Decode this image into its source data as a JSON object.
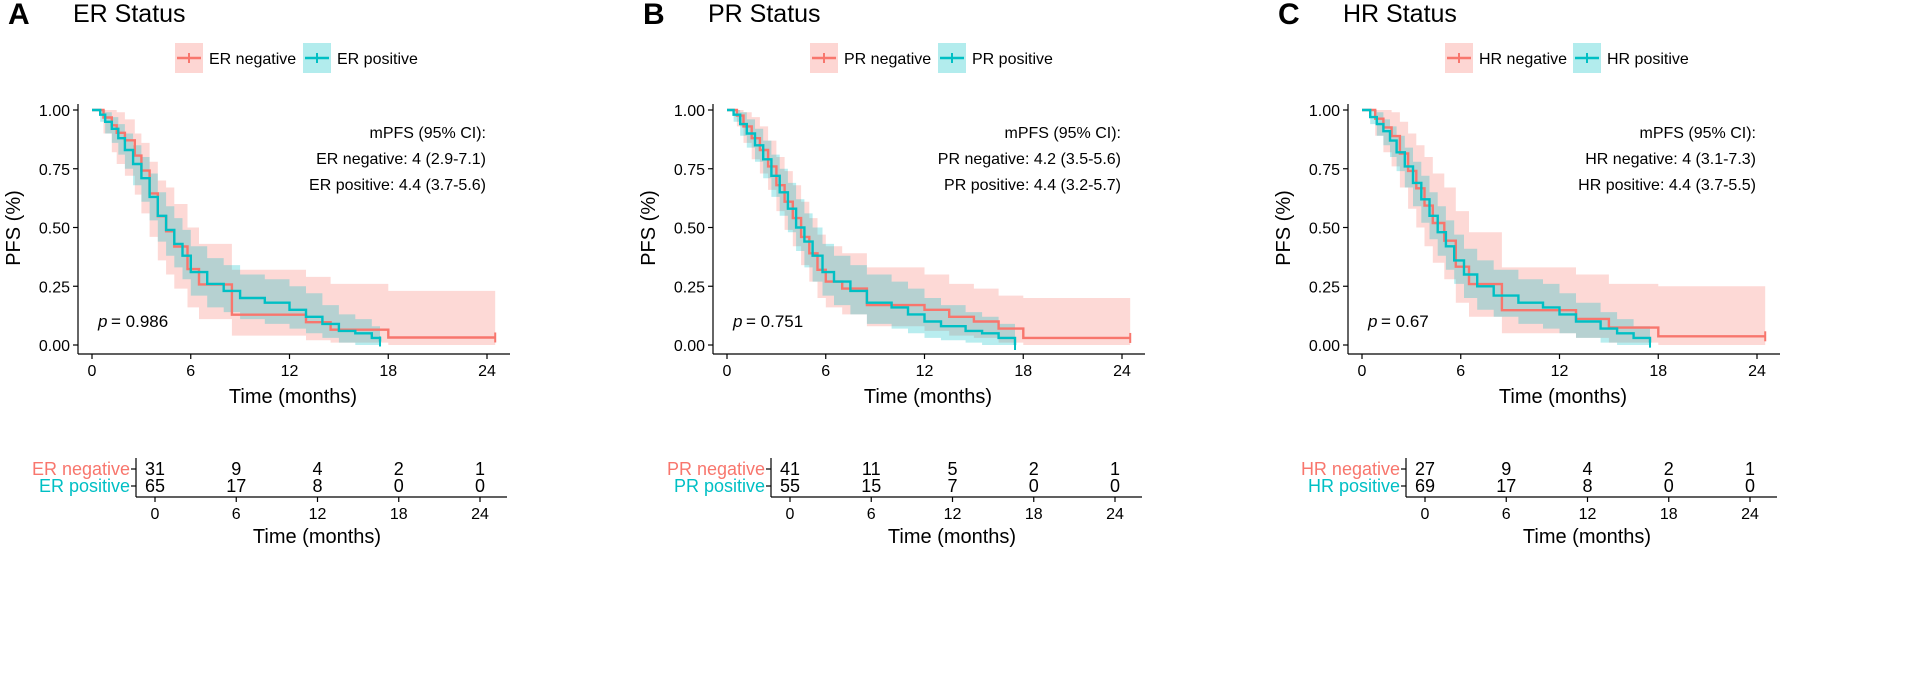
{
  "colors": {
    "negative": "#F8766D",
    "positive": "#00BFC4",
    "neg_fill": "#F8766D",
    "pos_fill": "#00BFC4"
  },
  "chart_data": [
    {
      "type": "line",
      "panel_letter": "A",
      "title": "ER Status",
      "legend": [
        "ER negative",
        "ER positive"
      ],
      "xlabel": "Time (months)",
      "ylabel": "PFS (%)",
      "xlim": [
        0,
        24
      ],
      "ylim": [
        0,
        1
      ],
      "xticks": [
        "0",
        "6",
        "12",
        "18",
        "24"
      ],
      "yticks": [
        "0.00",
        "0.25",
        "0.50",
        "0.75",
        "1.00"
      ],
      "annotation_title": "mPFS (95% CI):",
      "annotation_lines": [
        "ER negative: 4 (2.9-7.1)",
        "ER positive: 4.4 (3.7-5.6)"
      ],
      "pvalue_label": "p",
      "pvalue": "= 0.986",
      "series": [
        {
          "name": "ER negative",
          "x": [
            0,
            0.7,
            1.2,
            1.5,
            2.0,
            2.6,
            3.0,
            3.5,
            4.0,
            4.5,
            5.0,
            5.8,
            6.5,
            8.5,
            10.0,
            13.0,
            14.5,
            18.0,
            24.5
          ],
          "y": [
            1.0,
            0.968,
            0.935,
            0.903,
            0.871,
            0.806,
            0.742,
            0.645,
            0.548,
            0.484,
            0.419,
            0.323,
            0.258,
            0.129,
            0.129,
            0.097,
            0.065,
            0.032,
            0.032
          ],
          "lower": [
            1.0,
            0.9,
            0.82,
            0.77,
            0.72,
            0.64,
            0.56,
            0.46,
            0.36,
            0.3,
            0.24,
            0.16,
            0.11,
            0.04,
            0.04,
            0.02,
            0.01,
            0.0,
            0.0
          ],
          "upper": [
            1.0,
            1.0,
            1.0,
            0.99,
            0.96,
            0.9,
            0.86,
            0.78,
            0.7,
            0.67,
            0.6,
            0.5,
            0.43,
            0.32,
            0.32,
            0.29,
            0.26,
            0.23,
            0.23
          ]
        },
        {
          "name": "ER positive",
          "x": [
            0,
            0.5,
            0.8,
            1.2,
            1.6,
            2.0,
            2.5,
            3.0,
            3.5,
            4.0,
            4.5,
            5.0,
            5.5,
            6.0,
            7.0,
            8.0,
            9.0,
            10.5,
            12.0,
            13.0,
            14.0,
            15.0,
            16.0,
            17.0,
            17.5
          ],
          "y": [
            1.0,
            0.98,
            0.95,
            0.92,
            0.88,
            0.83,
            0.77,
            0.71,
            0.63,
            0.55,
            0.49,
            0.43,
            0.38,
            0.31,
            0.26,
            0.23,
            0.2,
            0.18,
            0.15,
            0.12,
            0.09,
            0.06,
            0.05,
            0.03,
            0.015
          ],
          "lower": [
            1.0,
            0.95,
            0.9,
            0.86,
            0.81,
            0.75,
            0.68,
            0.61,
            0.53,
            0.44,
            0.38,
            0.33,
            0.28,
            0.21,
            0.16,
            0.14,
            0.11,
            0.09,
            0.07,
            0.05,
            0.03,
            0.01,
            0.0,
            0.0,
            0.0
          ],
          "upper": [
            1.0,
            1.0,
            0.99,
            0.97,
            0.94,
            0.9,
            0.85,
            0.8,
            0.73,
            0.65,
            0.59,
            0.54,
            0.49,
            0.42,
            0.37,
            0.34,
            0.3,
            0.28,
            0.25,
            0.22,
            0.17,
            0.13,
            0.11,
            0.08,
            0.05
          ]
        }
      ],
      "risk_table": {
        "rows": [
          {
            "label": "ER negative",
            "counts": [
              "31",
              "9",
              "4",
              "2",
              "1"
            ]
          },
          {
            "label": "ER positive",
            "counts": [
              "65",
              "17",
              "8",
              "0",
              "0"
            ]
          }
        ],
        "xticks": [
          "0",
          "6",
          "12",
          "18",
          "24"
        ],
        "xlabel": "Time (months)"
      }
    },
    {
      "type": "line",
      "panel_letter": "B",
      "title": "PR Status",
      "legend": [
        "PR negative",
        "PR positive"
      ],
      "xlabel": "Time (months)",
      "ylabel": "PFS (%)",
      "xlim": [
        0,
        24
      ],
      "ylim": [
        0,
        1
      ],
      "xticks": [
        "0",
        "6",
        "12",
        "18",
        "24"
      ],
      "yticks": [
        "0.00",
        "0.25",
        "0.50",
        "0.75",
        "1.00"
      ],
      "annotation_title": "mPFS (95% CI):",
      "annotation_lines": [
        "PR negative: 4.2 (3.5-5.6)",
        "PR positive: 4.4 (3.2-5.7)"
      ],
      "pvalue_label": "p",
      "pvalue": "= 0.751",
      "series": [
        {
          "name": "PR negative",
          "x": [
            0,
            0.6,
            1.0,
            1.5,
            2.0,
            2.5,
            3.0,
            3.5,
            4.0,
            4.5,
            5.0,
            5.5,
            6.0,
            7.0,
            8.5,
            10.0,
            12.0,
            13.5,
            15.0,
            16.5,
            18.0,
            24.5
          ],
          "y": [
            1.0,
            0.976,
            0.93,
            0.88,
            0.83,
            0.76,
            0.68,
            0.61,
            0.54,
            0.46,
            0.39,
            0.32,
            0.27,
            0.24,
            0.17,
            0.17,
            0.15,
            0.12,
            0.1,
            0.07,
            0.03,
            0.03
          ],
          "lower": [
            1.0,
            0.93,
            0.86,
            0.79,
            0.73,
            0.66,
            0.57,
            0.49,
            0.42,
            0.34,
            0.27,
            0.2,
            0.16,
            0.13,
            0.08,
            0.08,
            0.06,
            0.04,
            0.03,
            0.01,
            0.0,
            0.0
          ],
          "upper": [
            1.0,
            1.0,
            0.99,
            0.97,
            0.93,
            0.87,
            0.8,
            0.74,
            0.68,
            0.61,
            0.54,
            0.47,
            0.42,
            0.39,
            0.33,
            0.33,
            0.3,
            0.26,
            0.24,
            0.21,
            0.2,
            0.2
          ]
        },
        {
          "name": "PR positive",
          "x": [
            0,
            0.4,
            0.8,
            1.2,
            1.7,
            2.2,
            2.7,
            3.2,
            3.7,
            4.2,
            4.7,
            5.2,
            5.8,
            6.5,
            7.5,
            8.5,
            10.0,
            11.0,
            12.0,
            13.0,
            14.5,
            15.5,
            16.5,
            17.5
          ],
          "y": [
            1.0,
            0.98,
            0.94,
            0.9,
            0.85,
            0.79,
            0.72,
            0.65,
            0.58,
            0.5,
            0.44,
            0.38,
            0.31,
            0.27,
            0.23,
            0.18,
            0.16,
            0.13,
            0.1,
            0.08,
            0.06,
            0.05,
            0.03,
            0.0
          ],
          "lower": [
            1.0,
            0.95,
            0.89,
            0.84,
            0.78,
            0.71,
            0.63,
            0.55,
            0.48,
            0.4,
            0.33,
            0.27,
            0.21,
            0.17,
            0.13,
            0.09,
            0.07,
            0.05,
            0.03,
            0.02,
            0.01,
            0.0,
            0.0,
            0.0
          ],
          "upper": [
            1.0,
            1.0,
            0.99,
            0.96,
            0.92,
            0.87,
            0.81,
            0.75,
            0.69,
            0.62,
            0.56,
            0.5,
            0.43,
            0.38,
            0.34,
            0.3,
            0.27,
            0.24,
            0.2,
            0.17,
            0.14,
            0.12,
            0.09,
            0.05
          ]
        }
      ],
      "risk_table": {
        "rows": [
          {
            "label": "PR negative",
            "counts": [
              "41",
              "11",
              "5",
              "2",
              "1"
            ]
          },
          {
            "label": "PR positive",
            "counts": [
              "55",
              "15",
              "7",
              "0",
              "0"
            ]
          }
        ],
        "xticks": [
          "0",
          "6",
          "12",
          "18",
          "24"
        ],
        "xlabel": "Time (months)"
      }
    },
    {
      "type": "line",
      "panel_letter": "C",
      "title": "HR Status",
      "legend": [
        "HR negative",
        "HR positive"
      ],
      "xlabel": "Time (months)",
      "ylabel": "PFS (%)",
      "xlim": [
        0,
        24
      ],
      "ylim": [
        0,
        1
      ],
      "xticks": [
        "0",
        "6",
        "12",
        "18",
        "24"
      ],
      "yticks": [
        "0.00",
        "0.25",
        "0.50",
        "0.75",
        "1.00"
      ],
      "annotation_title": "mPFS (95% CI):",
      "annotation_lines": [
        "HR negative: 4 (3.1-7.3)",
        "HR positive: 4.4 (3.7-5.5)"
      ],
      "pvalue_label": "p",
      "pvalue": "= 0.67",
      "series": [
        {
          "name": "HR negative",
          "x": [
            0,
            0.8,
            1.3,
            1.8,
            2.3,
            2.8,
            3.3,
            3.8,
            4.3,
            5.0,
            5.7,
            6.5,
            8.5,
            10.0,
            13.0,
            15.0,
            18.0,
            24.5
          ],
          "y": [
            1.0,
            0.963,
            0.926,
            0.889,
            0.815,
            0.741,
            0.667,
            0.593,
            0.519,
            0.444,
            0.333,
            0.259,
            0.148,
            0.148,
            0.111,
            0.074,
            0.037,
            0.037
          ],
          "lower": [
            1.0,
            0.89,
            0.82,
            0.76,
            0.67,
            0.58,
            0.5,
            0.42,
            0.35,
            0.28,
            0.18,
            0.12,
            0.05,
            0.05,
            0.03,
            0.01,
            0.0,
            0.0
          ],
          "upper": [
            1.0,
            1.0,
            1.0,
            0.99,
            0.95,
            0.9,
            0.85,
            0.8,
            0.73,
            0.67,
            0.57,
            0.48,
            0.33,
            0.33,
            0.3,
            0.26,
            0.25,
            0.25
          ]
        },
        {
          "name": "HR positive",
          "x": [
            0,
            0.5,
            0.9,
            1.3,
            1.7,
            2.1,
            2.6,
            3.1,
            3.6,
            4.1,
            4.6,
            5.1,
            5.6,
            6.2,
            7.0,
            8.0,
            9.5,
            11.0,
            12.0,
            13.0,
            14.5,
            15.5,
            16.5,
            17.5
          ],
          "y": [
            1.0,
            0.97,
            0.94,
            0.91,
            0.87,
            0.82,
            0.76,
            0.69,
            0.62,
            0.55,
            0.48,
            0.42,
            0.36,
            0.3,
            0.25,
            0.21,
            0.18,
            0.16,
            0.13,
            0.1,
            0.07,
            0.05,
            0.03,
            0.01
          ],
          "lower": [
            1.0,
            0.94,
            0.89,
            0.85,
            0.8,
            0.74,
            0.67,
            0.59,
            0.52,
            0.45,
            0.38,
            0.32,
            0.26,
            0.2,
            0.15,
            0.12,
            0.09,
            0.07,
            0.05,
            0.03,
            0.01,
            0.0,
            0.0,
            0.0
          ],
          "upper": [
            1.0,
            1.0,
            0.99,
            0.96,
            0.93,
            0.89,
            0.84,
            0.78,
            0.72,
            0.65,
            0.59,
            0.53,
            0.47,
            0.41,
            0.36,
            0.32,
            0.28,
            0.26,
            0.22,
            0.18,
            0.14,
            0.11,
            0.08,
            0.05
          ]
        }
      ],
      "risk_table": {
        "rows": [
          {
            "label": "HR negative",
            "counts": [
              "27",
              "9",
              "4",
              "2",
              "1"
            ]
          },
          {
            "label": "HR positive",
            "counts": [
              "69",
              "17",
              "8",
              "0",
              "0"
            ]
          }
        ],
        "xticks": [
          "0",
          "6",
          "12",
          "18",
          "24"
        ],
        "xlabel": "Time (months)"
      }
    }
  ]
}
